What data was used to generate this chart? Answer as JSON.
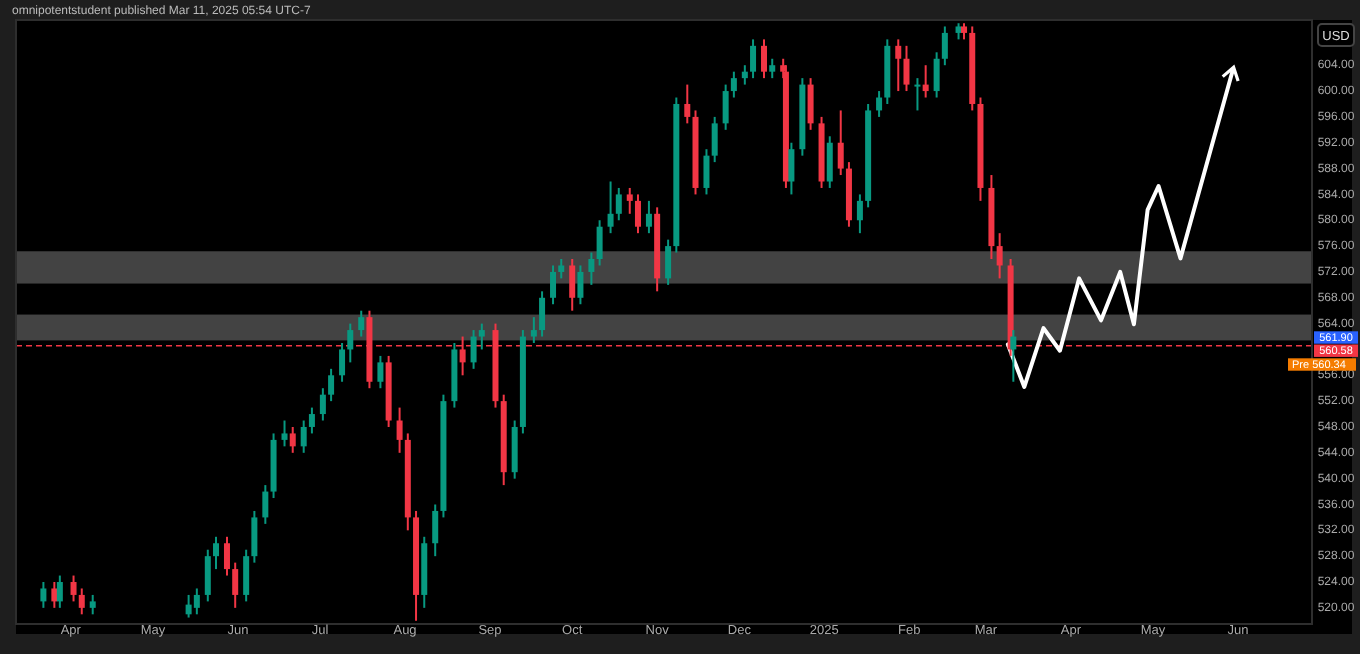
{
  "chart_data": {
    "type": "candlestick",
    "title": "omnipotentstudent published Mar 11, 2025 05:54 UTC-7",
    "x": [
      "2024-03-22",
      "2024-03-26",
      "2024-03-28",
      "2024-04-02",
      "2024-04-05",
      "2024-04-09",
      "2024-05-14",
      "2024-05-17",
      "2024-05-21",
      "2024-05-24",
      "2024-05-28",
      "2024-05-31",
      "2024-06-04",
      "2024-06-07",
      "2024-06-11",
      "2024-06-14",
      "2024-06-18",
      "2024-06-21",
      "2024-06-25",
      "2024-06-28",
      "2024-07-02",
      "2024-07-05",
      "2024-07-09",
      "2024-07-12",
      "2024-07-16",
      "2024-07-19",
      "2024-07-23",
      "2024-07-26",
      "2024-07-30",
      "2024-08-02",
      "2024-08-05",
      "2024-08-08",
      "2024-08-12",
      "2024-08-15",
      "2024-08-19",
      "2024-08-22",
      "2024-08-26",
      "2024-08-29",
      "2024-09-03",
      "2024-09-06",
      "2024-09-10",
      "2024-09-13",
      "2024-09-17",
      "2024-09-20",
      "2024-09-24",
      "2024-09-27",
      "2024-10-01",
      "2024-10-04",
      "2024-10-08",
      "2024-10-11",
      "2024-10-15",
      "2024-10-18",
      "2024-10-22",
      "2024-10-25",
      "2024-10-29",
      "2024-11-01",
      "2024-11-05",
      "2024-11-08",
      "2024-11-12",
      "2024-11-15",
      "2024-11-19",
      "2024-11-22",
      "2024-11-26",
      "2024-11-29",
      "2024-12-03",
      "2024-12-06",
      "2024-12-10",
      "2024-12-13",
      "2024-12-17",
      "2024-12-18",
      "2024-12-20",
      "2024-12-24",
      "2024-12-27",
      "2024-12-31",
      "2025-01-03",
      "2025-01-07",
      "2025-01-10",
      "2025-01-14",
      "2025-01-17",
      "2025-01-21",
      "2025-01-24",
      "2025-01-28",
      "2025-01-31",
      "2025-02-04",
      "2025-02-07",
      "2025-02-11",
      "2025-02-14",
      "2025-02-19",
      "2025-02-21",
      "2025-02-24",
      "2025-02-27",
      "2025-03-03",
      "2025-03-06",
      "2025-03-10",
      "2025-03-11"
    ],
    "ohlc": [
      [
        521,
        524,
        520,
        523
      ],
      [
        523,
        524,
        520,
        521
      ],
      [
        521,
        525,
        520,
        524
      ],
      [
        524,
        525,
        521,
        522
      ],
      [
        522,
        523,
        519,
        520
      ],
      [
        520,
        522,
        519,
        521
      ],
      [
        519,
        522,
        518.5,
        520.5
      ],
      [
        520,
        523,
        519,
        522
      ],
      [
        522,
        529,
        521,
        528
      ],
      [
        528,
        531,
        526,
        530
      ],
      [
        530,
        531,
        525,
        526
      ],
      [
        526,
        527,
        520,
        522
      ],
      [
        522,
        529,
        521,
        528
      ],
      [
        528,
        535,
        527,
        534
      ],
      [
        534,
        539,
        533,
        538
      ],
      [
        538,
        547,
        537,
        546
      ],
      [
        546,
        549,
        545,
        547
      ],
      [
        547,
        548,
        544,
        545
      ],
      [
        545,
        549,
        544,
        548
      ],
      [
        548,
        551,
        547,
        550
      ],
      [
        550,
        554,
        549,
        553
      ],
      [
        553,
        557,
        552,
        556
      ],
      [
        556,
        561,
        555,
        560
      ],
      [
        560,
        564,
        558,
        563
      ],
      [
        563,
        566,
        562,
        565
      ],
      [
        565,
        566,
        554,
        555
      ],
      [
        555,
        559,
        554,
        558
      ],
      [
        558,
        559,
        548,
        549
      ],
      [
        549,
        551,
        544,
        546
      ],
      [
        546,
        547,
        532,
        534
      ],
      [
        534,
        535,
        518,
        522
      ],
      [
        522,
        531,
        520,
        530
      ],
      [
        530,
        536,
        528,
        535
      ],
      [
        535,
        553,
        534,
        552
      ],
      [
        552,
        561,
        551,
        560
      ],
      [
        560,
        562,
        556,
        558
      ],
      [
        558,
        563,
        557,
        562
      ],
      [
        562,
        564,
        560,
        563
      ],
      [
        563,
        564,
        551,
        552
      ],
      [
        552,
        553,
        539,
        541
      ],
      [
        541,
        549,
        540,
        548
      ],
      [
        548,
        563,
        547,
        562
      ],
      [
        562,
        565,
        561,
        563
      ],
      [
        563,
        569,
        562,
        568
      ],
      [
        568,
        573,
        567,
        572
      ],
      [
        572,
        574,
        571,
        573
      ],
      [
        573,
        574,
        566,
        568
      ],
      [
        568,
        573,
        567,
        572
      ],
      [
        572,
        575,
        570,
        574
      ],
      [
        574,
        580,
        573,
        579
      ],
      [
        579,
        586,
        578,
        581
      ],
      [
        581,
        585,
        580,
        584
      ],
      [
        584,
        585,
        581,
        583
      ],
      [
        583,
        584,
        578,
        579
      ],
      [
        579,
        583,
        578,
        581
      ],
      [
        581,
        582,
        569,
        571
      ],
      [
        571,
        577,
        570,
        576
      ],
      [
        576,
        599,
        575,
        598
      ],
      [
        598,
        601,
        595,
        596
      ],
      [
        596,
        597,
        584,
        585
      ],
      [
        585,
        591,
        584,
        590
      ],
      [
        590,
        596,
        589,
        595
      ],
      [
        595,
        601,
        594,
        600
      ],
      [
        600,
        603,
        599,
        602
      ],
      [
        602,
        604,
        601,
        603
      ],
      [
        603,
        608,
        602,
        607
      ],
      [
        607,
        608,
        602,
        603
      ],
      [
        603,
        605,
        602,
        604
      ],
      [
        604,
        605,
        602,
        603
      ],
      [
        603,
        604,
        585,
        586
      ],
      [
        586,
        592,
        584,
        591
      ],
      [
        591,
        602,
        590,
        601
      ],
      [
        601,
        602,
        594,
        595
      ],
      [
        595,
        596,
        585,
        586
      ],
      [
        586,
        593,
        585,
        592
      ],
      [
        592,
        597,
        587,
        588
      ],
      [
        588,
        589,
        579,
        580
      ],
      [
        580,
        584,
        578,
        583
      ],
      [
        583,
        598,
        582,
        597
      ],
      [
        597,
        600,
        596,
        599
      ],
      [
        599,
        608,
        598,
        607
      ],
      [
        607,
        608,
        600,
        605
      ],
      [
        605,
        607,
        600,
        601
      ],
      [
        601,
        602,
        597,
        601
      ],
      [
        601,
        604,
        599,
        600
      ],
      [
        600,
        606,
        599,
        605
      ],
      [
        605,
        610,
        604,
        609
      ],
      [
        609,
        610.5,
        608,
        610
      ],
      [
        610,
        610.5,
        608,
        609
      ],
      [
        609,
        610,
        597,
        598
      ],
      [
        598,
        599,
        583,
        585
      ],
      [
        585,
        587,
        574,
        576
      ],
      [
        576,
        578,
        571,
        573
      ],
      [
        573,
        574,
        559,
        560
      ],
      [
        560,
        563,
        555,
        562
      ]
    ],
    "series": [
      {
        "type": "line",
        "color": "#ffffff",
        "x": [
          "2025-03-09",
          "2025-03-15",
          "2025-03-22",
          "2025-03-28",
          "2025-04-04",
          "2025-04-12",
          "2025-04-19",
          "2025-04-24",
          "2025-04-29",
          "2025-05-03",
          "2025-05-11",
          "2025-05-30"
        ],
        "values": [
          560.8,
          554.2,
          563.3,
          559.8,
          571.0,
          564.5,
          572.0,
          563.9,
          581.6,
          585.3,
          574.1,
          603.1
        ]
      }
    ],
    "xlim": [
      "2024-03-12",
      "2025-06-28"
    ],
    "xticks": [
      {
        "value": "2024-04-01",
        "label": "Apr"
      },
      {
        "value": "2024-05-01",
        "label": "May"
      },
      {
        "value": "2024-06-01",
        "label": "Jun"
      },
      {
        "value": "2024-07-01",
        "label": "Jul"
      },
      {
        "value": "2024-08-01",
        "label": "Aug"
      },
      {
        "value": "2024-09-01",
        "label": "Sep"
      },
      {
        "value": "2024-10-01",
        "label": "Oct"
      },
      {
        "value": "2024-11-01",
        "label": "Nov"
      },
      {
        "value": "2024-12-01",
        "label": "Dec"
      },
      {
        "value": "2025-01-01",
        "label": "2025"
      },
      {
        "value": "2025-02-01",
        "label": "Feb"
      },
      {
        "value": "2025-03-01",
        "label": "Mar"
      },
      {
        "value": "2025-04-01",
        "label": "Apr"
      },
      {
        "value": "2025-05-01",
        "label": "May"
      },
      {
        "value": "2025-06-01",
        "label": "Jun"
      }
    ],
    "ylim": [
      517.5,
      611
    ],
    "yticks": [
      {
        "value": 520,
        "label": "520.00"
      },
      {
        "value": 524,
        "label": "524.00"
      },
      {
        "value": 528,
        "label": "528.00"
      },
      {
        "value": 532,
        "label": "532.00"
      },
      {
        "value": 536,
        "label": "536.00"
      },
      {
        "value": 540,
        "label": "540.00"
      },
      {
        "value": 544,
        "label": "544.00"
      },
      {
        "value": 548,
        "label": "548.00"
      },
      {
        "value": 552,
        "label": "552.00"
      },
      {
        "value": 556,
        "label": "556.00"
      },
      {
        "value": 564,
        "label": "564.00"
      },
      {
        "value": 568,
        "label": "568.00"
      },
      {
        "value": 572,
        "label": "572.00"
      },
      {
        "value": 576,
        "label": "576.00"
      },
      {
        "value": 580,
        "label": "580.00"
      },
      {
        "value": 584,
        "label": "584.00"
      },
      {
        "value": 588,
        "label": "588.00"
      },
      {
        "value": 592,
        "label": "592.00"
      },
      {
        "value": 596,
        "label": "596.00"
      },
      {
        "value": 600,
        "label": "600.00"
      },
      {
        "value": 604,
        "label": "604.00"
      }
    ],
    "bands": [
      {
        "axis": "y",
        "from": 561.4,
        "to": 565.4,
        "color": "#434343"
      },
      {
        "axis": "y",
        "from": 570.2,
        "to": 575.2,
        "color": "#434343"
      }
    ],
    "ref_lines": [
      {
        "axis": "y",
        "value": 560.58,
        "label": "560.58",
        "color": "#f23645",
        "line_style": "dashed"
      }
    ],
    "annotations": [
      {
        "text": "USD"
      },
      "561.90",
      "Pre 560.34"
    ],
    "grid": false
  }
}
